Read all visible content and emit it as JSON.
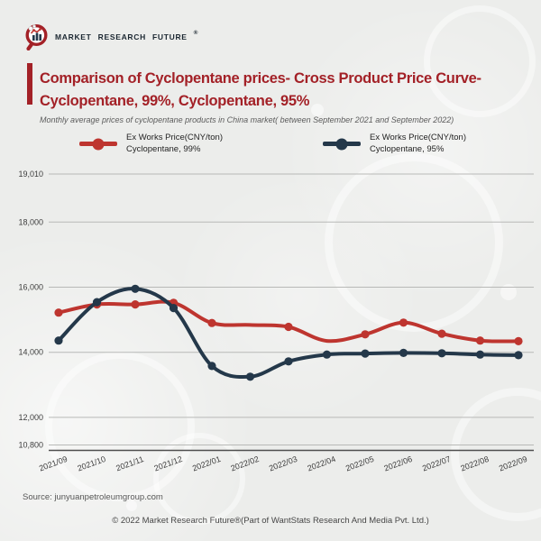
{
  "brand": {
    "name": "MARKET RESEARCH FUTURE",
    "registered": "®"
  },
  "header": {
    "title_line1": "Comparison of Cyclopentane prices- Cross Product Price Curve-",
    "title_line2": "Cyclopentane, 99%, Cyclopentane, 95%",
    "subtitle": "Monthly average prices of cyclopentane products in China market( between September 2021 and September 2022)"
  },
  "legend": {
    "items": [
      {
        "line1": "Ex Works Price(CNY/ton)",
        "line2": "Cyclopentane, 99%",
        "color": "#be352f"
      },
      {
        "line1": "Ex Works Price(CNY/ton)",
        "line2": "Cyclopentane, 95%",
        "color": "#24384a"
      }
    ]
  },
  "chart_data": {
    "type": "line",
    "smooth": true,
    "grid": true,
    "legend_position": "top",
    "x": [
      "2021/09",
      "2021/10",
      "2021/11",
      "2021/12",
      "2022/01",
      "2022/02",
      "2022/03",
      "2022/04",
      "2022/05",
      "2022/06",
      "2022/07",
      "2022/08",
      "2022/09"
    ],
    "y_ticks": [
      {
        "value": 19010,
        "label": "19,010"
      },
      {
        "value": 18000,
        "label": "18,000"
      },
      {
        "value": 16000,
        "label": "16,000"
      },
      {
        "value": 14000,
        "label": "14,000"
      },
      {
        "value": 12000,
        "label": "12,000"
      },
      {
        "value": 10800,
        "label": "10,800"
      }
    ],
    "series": [
      {
        "name": "Ex Works Price(CNY/ton) Cyclopentane, 99%",
        "color": "#be352f",
        "values": [
          15220,
          15470,
          15470,
          15520,
          14900,
          14840,
          14780,
          14350,
          14550,
          14910,
          14570,
          14360,
          14340
        ],
        "markers_hidden_at": [
          "2022/02",
          "2022/04"
        ]
      },
      {
        "name": "Ex Works Price(CNY/ton) Cyclopentane, 95%",
        "color": "#24384a",
        "values": [
          14360,
          15540,
          15950,
          15360,
          13580,
          13250,
          13720,
          13930,
          13960,
          13980,
          13970,
          13930,
          13910
        ],
        "markers_hidden_at": []
      }
    ]
  },
  "footer": {
    "source": "Source: junyuanpetroleumgroup.com",
    "copyright": "© 2022 Market Research Future®(Part of WantStats Research And Media Pvt. Ltd.)"
  }
}
